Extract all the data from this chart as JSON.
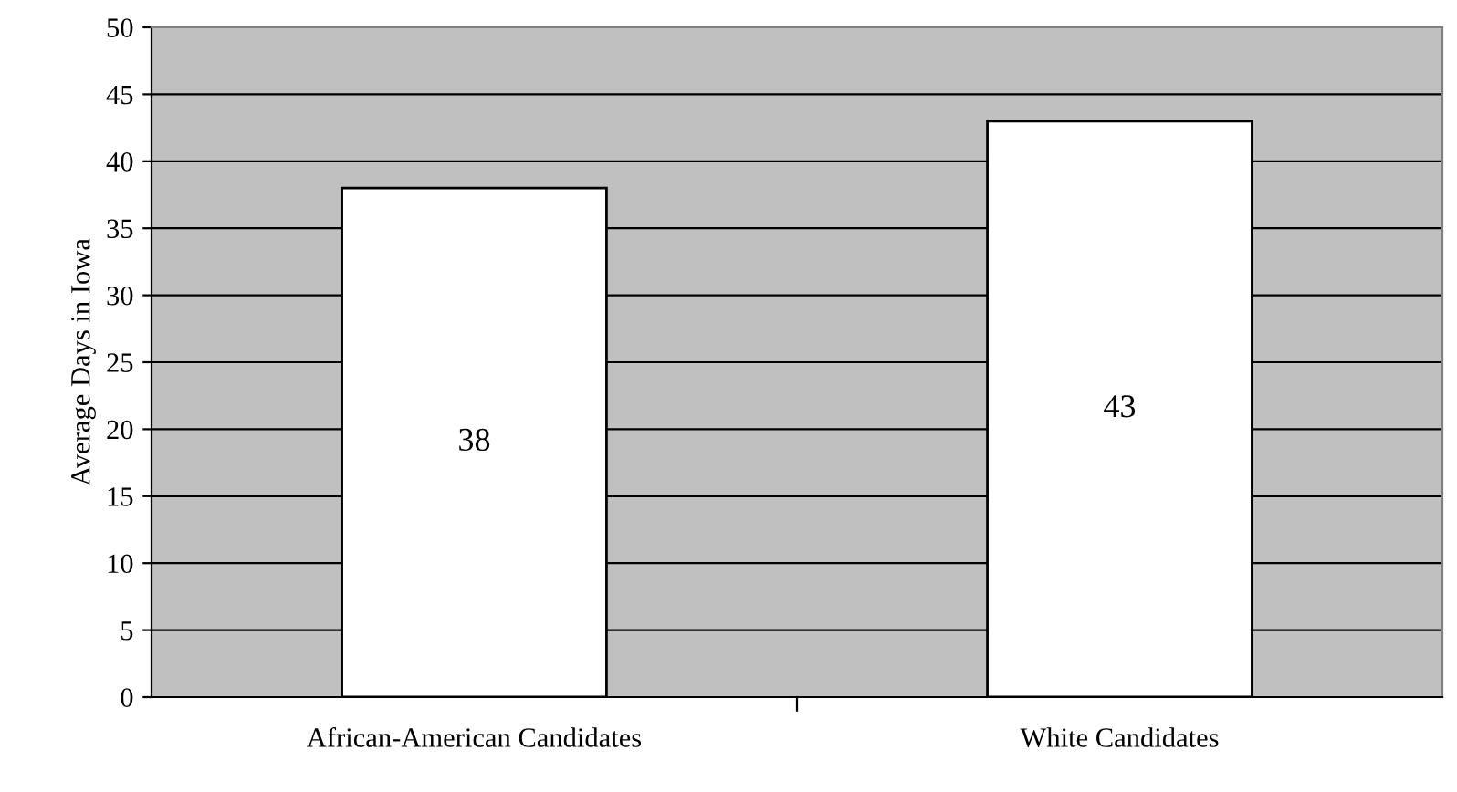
{
  "chart_data": {
    "type": "bar",
    "ylabel": "Average Days in Iowa",
    "categories": [
      "African-American Candidates",
      "White Candidates"
    ],
    "values": [
      38,
      43
    ],
    "color": "#ffffff",
    "ylim": [
      0,
      50
    ],
    "yticks": [
      0,
      5,
      10,
      15,
      20,
      25,
      30,
      35,
      40,
      45,
      50
    ],
    "grid": "y",
    "data_labels": true
  }
}
